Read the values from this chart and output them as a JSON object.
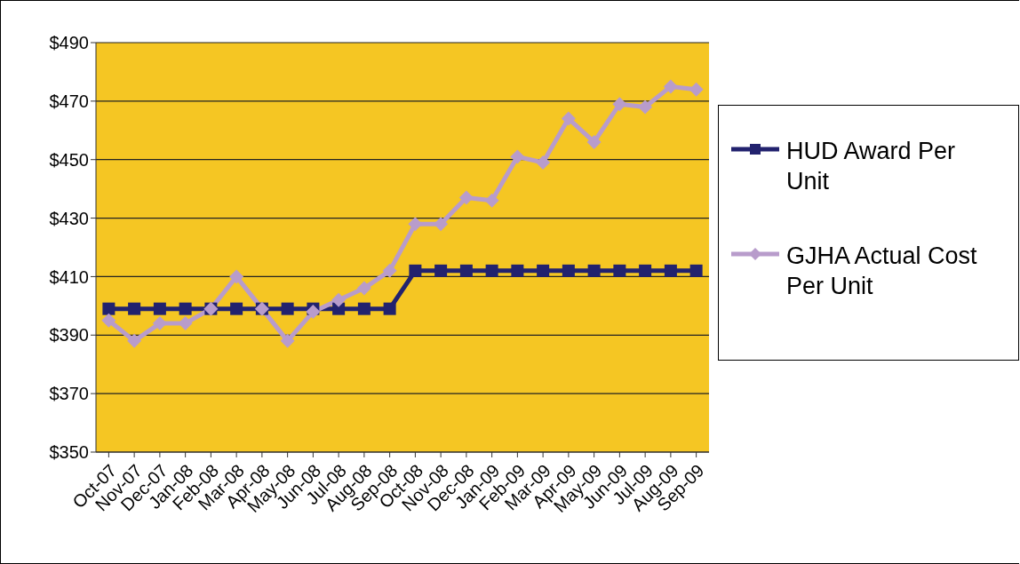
{
  "chart_data": {
    "type": "line",
    "categories": [
      "Oct-07",
      "Nov-07",
      "Dec-07",
      "Jan-08",
      "Feb-08",
      "Mar-08",
      "Apr-08",
      "May-08",
      "Jun-08",
      "Jul-08",
      "Aug-08",
      "Sep-08",
      "Oct-08",
      "Nov-08",
      "Dec-08",
      "Jan-09",
      "Feb-09",
      "Mar-09",
      "Apr-09",
      "May-09",
      "Jun-09",
      "Jul-09",
      "Aug-09",
      "Sep-09"
    ],
    "series": [
      {
        "name": "HUD Award Per Unit",
        "color": "#22226e",
        "marker": "square",
        "values": [
          399,
          399,
          399,
          399,
          399,
          399,
          399,
          399,
          399,
          399,
          399,
          399,
          412,
          412,
          412,
          412,
          412,
          412,
          412,
          412,
          412,
          412,
          412,
          412
        ]
      },
      {
        "name": "GJHA Actual Cost Per Unit",
        "color": "#b89ccb",
        "marker": "diamond",
        "values": [
          395,
          388,
          394,
          394,
          399,
          410,
          399,
          388,
          398,
          402,
          406,
          412,
          428,
          428,
          437,
          436,
          451,
          449,
          464,
          456,
          469,
          468,
          475,
          474
        ]
      }
    ],
    "ylim": [
      350,
      490
    ],
    "yticks": [
      {
        "value": 350,
        "label": "$350"
      },
      {
        "value": 370,
        "label": "$370"
      },
      {
        "value": 390,
        "label": "$390"
      },
      {
        "value": 410,
        "label": "$410"
      },
      {
        "value": 430,
        "label": "$430"
      },
      {
        "value": 450,
        "label": "$450"
      },
      {
        "value": 470,
        "label": "$470"
      },
      {
        "value": 490,
        "label": "$490"
      }
    ],
    "grid": "y",
    "legend": "right",
    "line_style": "solid"
  }
}
